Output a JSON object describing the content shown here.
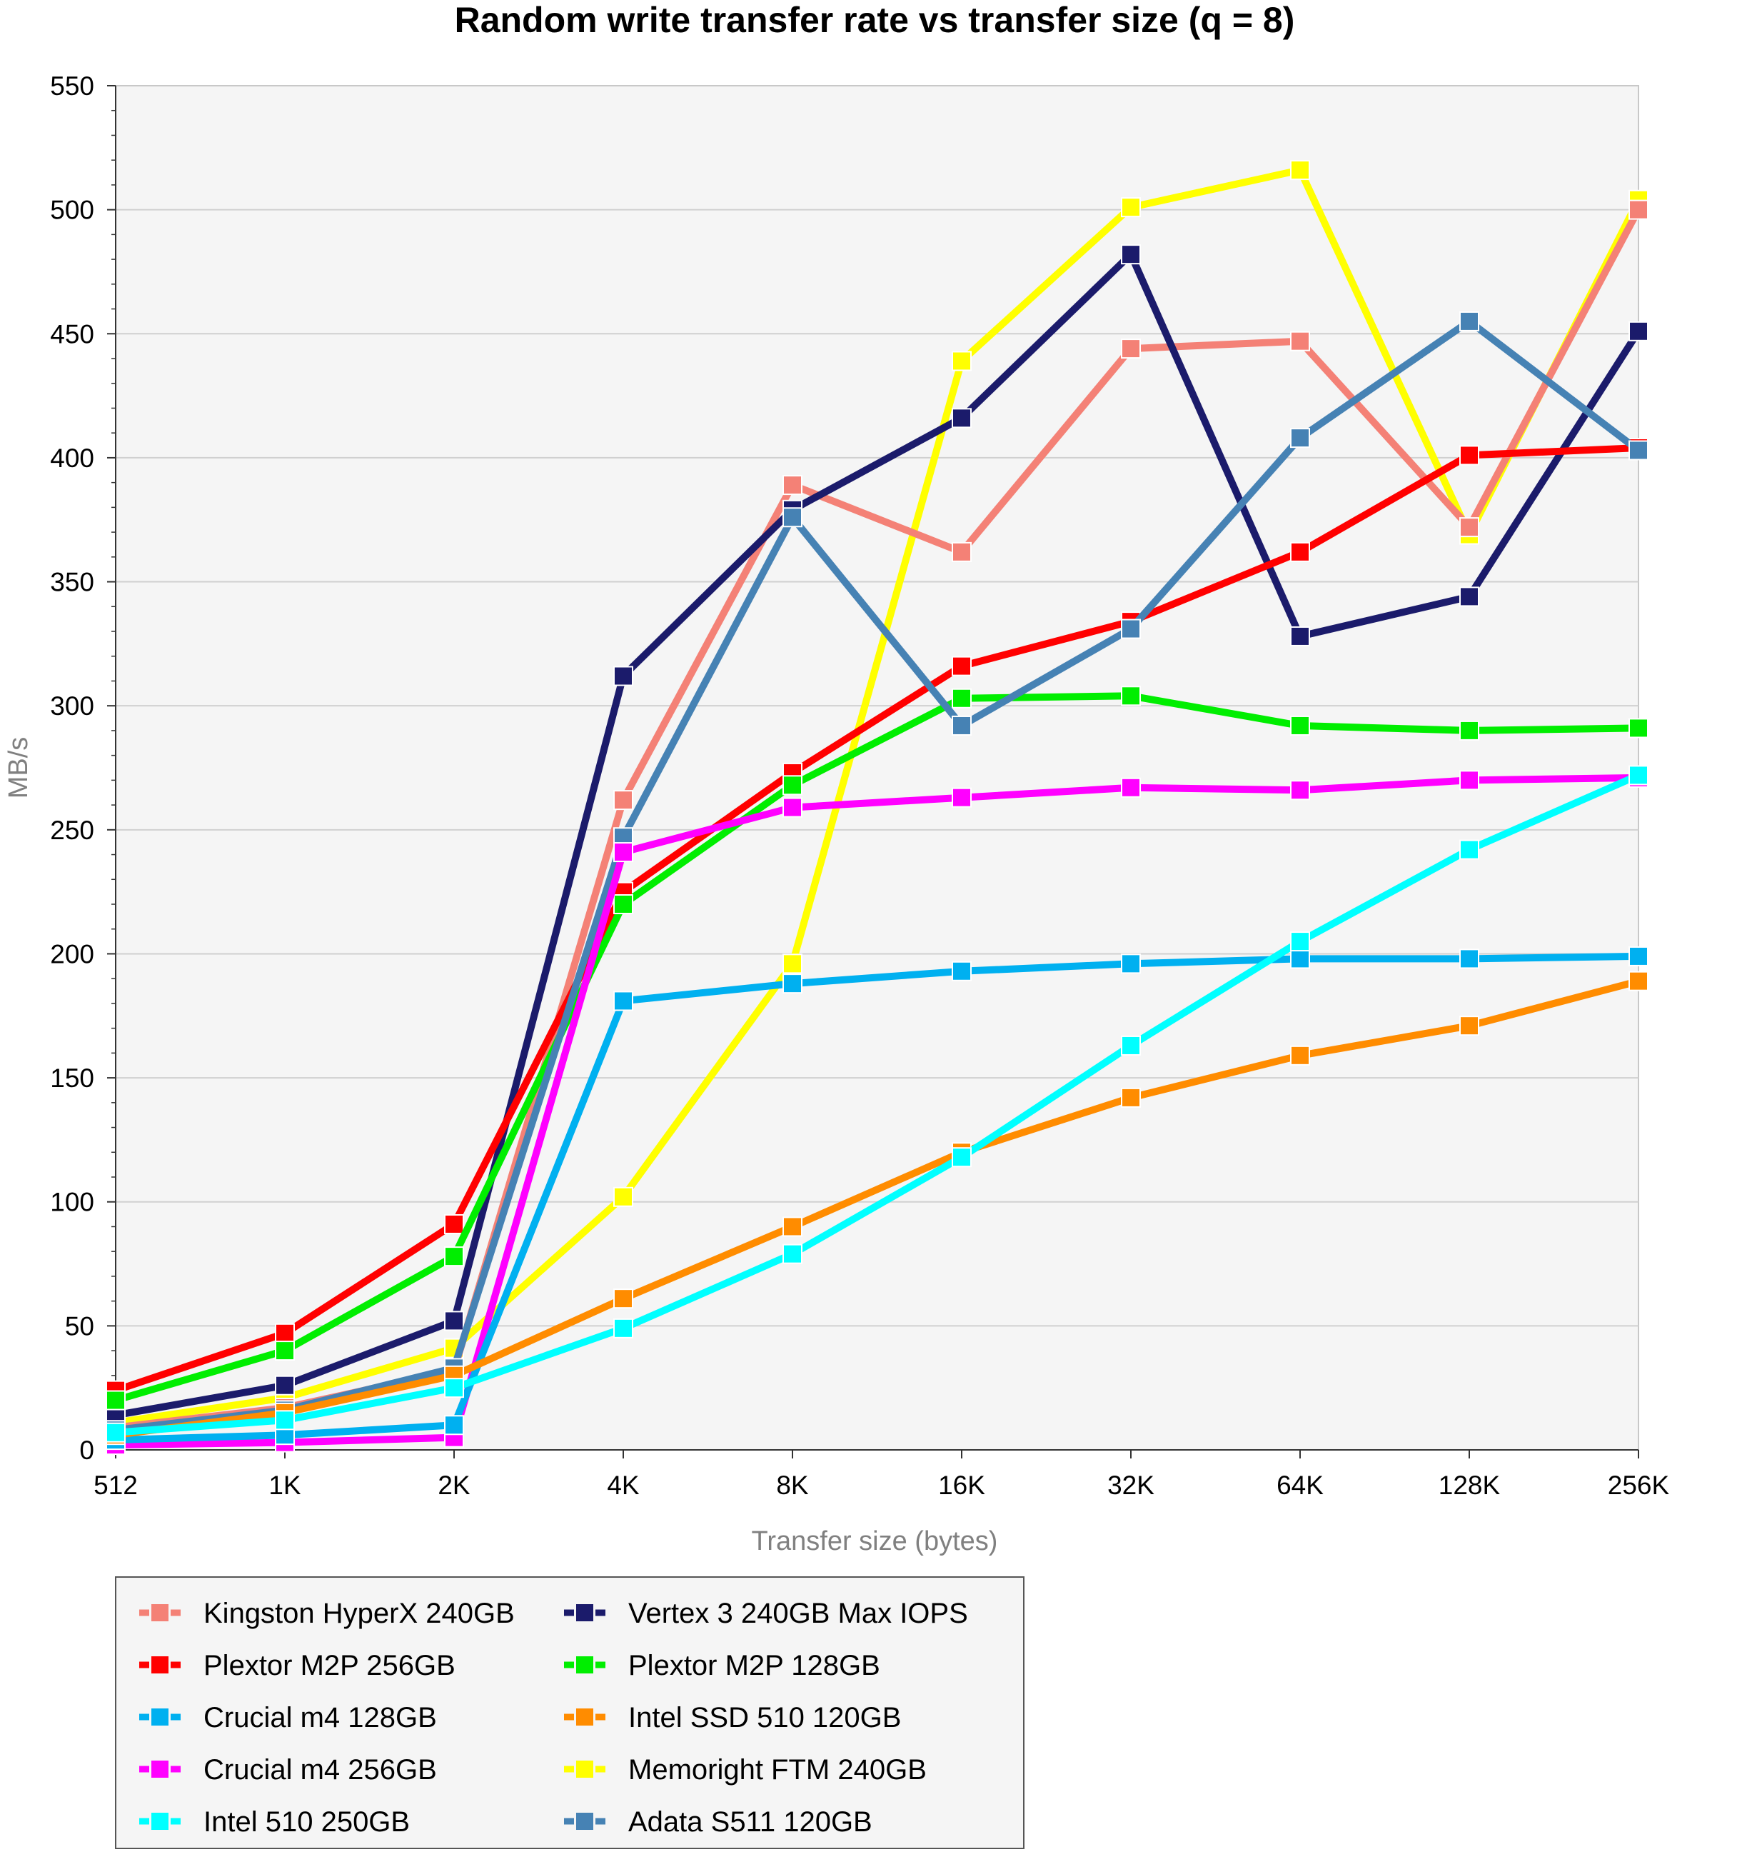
{
  "chart_data": {
    "type": "line",
    "title": "Random write transfer rate vs transfer size (q = 8)",
    "xlabel": "Transfer size (bytes)",
    "ylabel": "MB/s",
    "ylim": [
      0,
      550
    ],
    "yticks": [
      "0",
      "50",
      "100",
      "150",
      "200",
      "250",
      "300",
      "350",
      "400",
      "450",
      "500",
      "550"
    ],
    "categories": [
      "512",
      "1K",
      "2K",
      "4K",
      "8K",
      "16K",
      "32K",
      "64K",
      "128K",
      "256K"
    ],
    "grid": true,
    "legend_position": "bottom-left",
    "series": [
      {
        "name": "Memoright FTM 240GB",
        "color": "#ffff00",
        "values": [
          11,
          21,
          41,
          102,
          196,
          439,
          501,
          516,
          369,
          504
        ]
      },
      {
        "name": "Kingston HyperX 240GB",
        "color": "#f48176",
        "values": [
          9,
          17,
          32,
          262,
          389,
          362,
          444,
          447,
          372,
          500
        ]
      },
      {
        "name": "Vertex 3 240GB Max IOPS",
        "color": "#1b1b6b",
        "values": [
          14,
          26,
          52,
          312,
          379,
          416,
          482,
          328,
          344,
          451
        ]
      },
      {
        "name": "Plextor M2P 256GB",
        "color": "#ff0000",
        "values": [
          24,
          47,
          91,
          225,
          273,
          316,
          334,
          362,
          401,
          404
        ]
      },
      {
        "name": "Plextor M2P 128GB",
        "color": "#00ee00",
        "values": [
          20,
          40,
          78,
          220,
          268,
          303,
          304,
          292,
          290,
          291
        ]
      },
      {
        "name": "Adata S511 120GB",
        "color": "#4682b4",
        "values": [
          8,
          16,
          33,
          247,
          376,
          292,
          331,
          408,
          455,
          403
        ]
      },
      {
        "name": "Crucial m4 256GB",
        "color": "#ff00ff",
        "values": [
          2,
          3,
          5,
          241,
          259,
          263,
          267,
          266,
          270,
          271
        ]
      },
      {
        "name": "Crucial m4 128GB",
        "color": "#00b0f0",
        "values": [
          4,
          6,
          10,
          181,
          188,
          193,
          196,
          198,
          198,
          199
        ]
      },
      {
        "name": "Intel SSD 510 120GB",
        "color": "#ff8c00",
        "values": [
          6,
          15,
          30,
          61,
          90,
          120,
          142,
          159,
          171,
          189
        ]
      },
      {
        "name": "Intel 510 250GB",
        "color": "#00ffff",
        "values": [
          7,
          12,
          25,
          49,
          79,
          118,
          163,
          205,
          242,
          272
        ]
      }
    ],
    "legend_order": [
      "Kingston HyperX 240GB",
      "Vertex 3 240GB Max IOPS",
      "Plextor M2P 256GB",
      "Plextor M2P 128GB",
      "Crucial m4 128GB",
      "Intel SSD 510 120GB",
      "Crucial m4 256GB",
      "Memoright FTM 240GB",
      "Intel 510 250GB",
      "Adata S511 120GB"
    ]
  }
}
